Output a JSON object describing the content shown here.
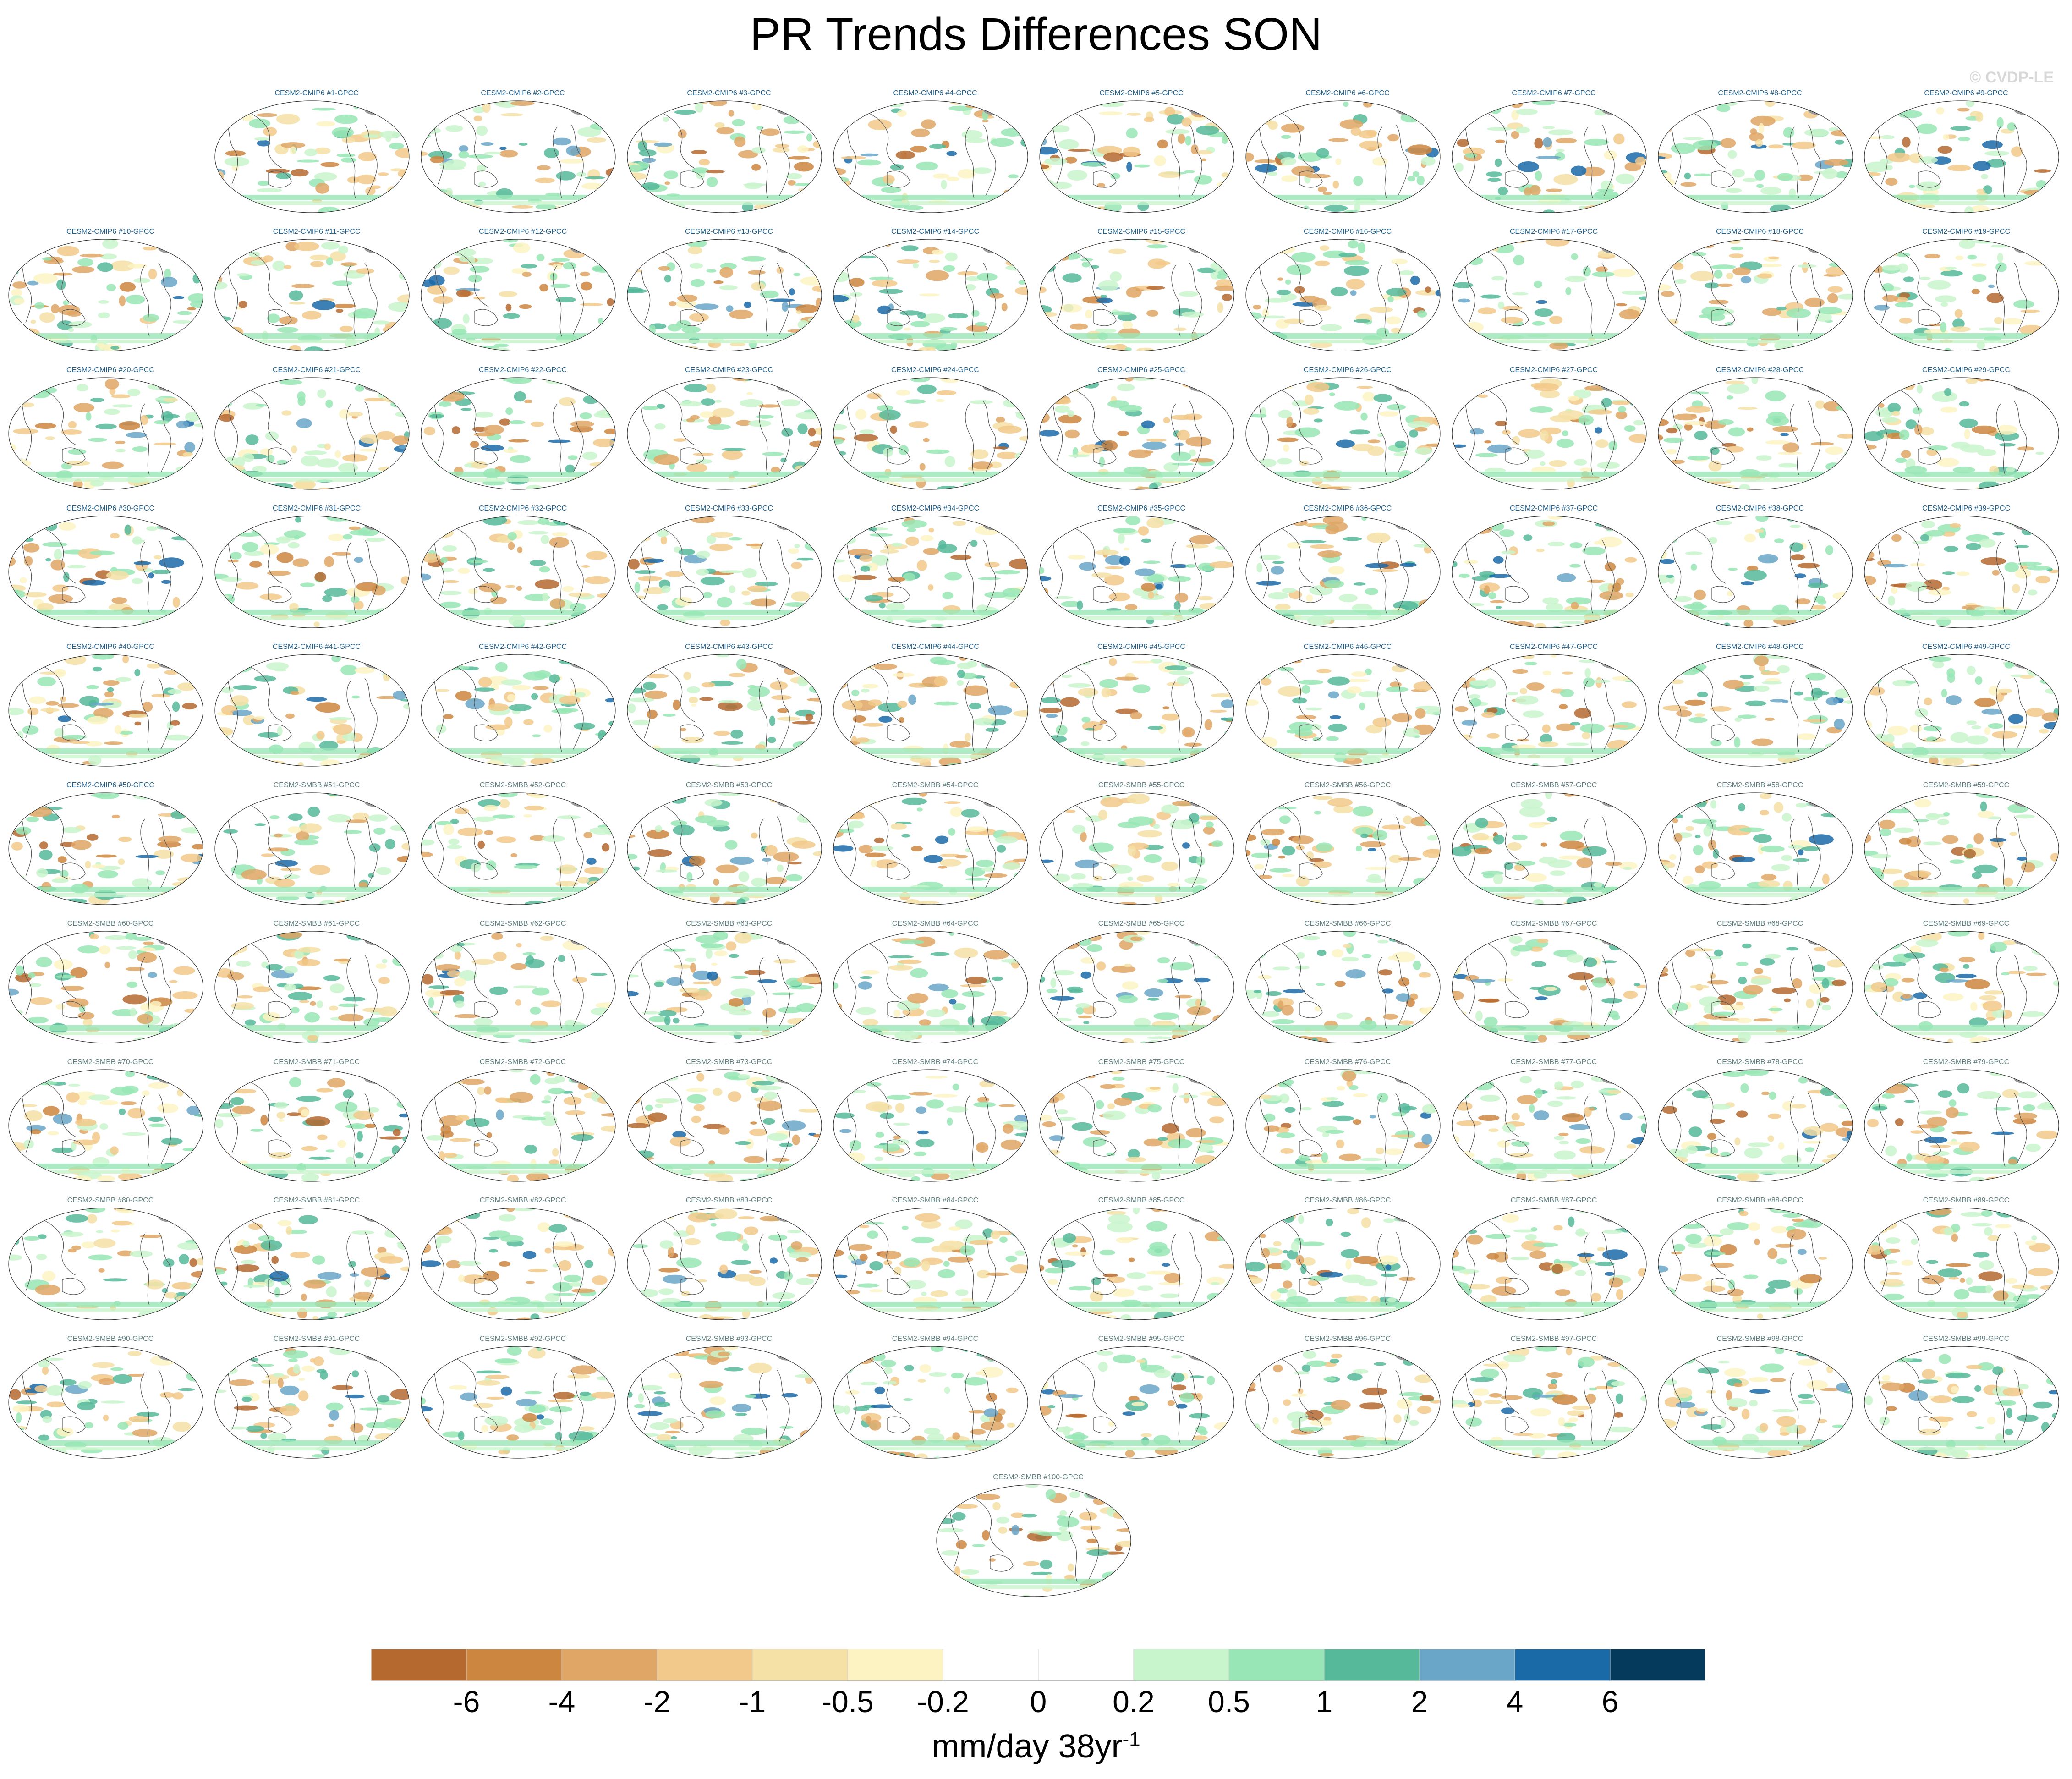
{
  "title": "PR Trends Differences SON",
  "watermark": "© CVDP-LE",
  "units": {
    "base": "mm/day 38yr",
    "superscript": "-1"
  },
  "chart_data": {
    "type": "heatmap",
    "title": "PR Trends Differences SON",
    "projection": "global map panels (Mollweide-style ellipse)",
    "panels_count": 100,
    "panel_labels": [
      "CESM2-CMIP6 #1-GPCC",
      "CESM2-CMIP6 #2-GPCC",
      "CESM2-CMIP6 #3-GPCC",
      "CESM2-CMIP6 #4-GPCC",
      "CESM2-CMIP6 #5-GPCC",
      "CESM2-CMIP6 #6-GPCC",
      "CESM2-CMIP6 #7-GPCC",
      "CESM2-CMIP6 #8-GPCC",
      "CESM2-CMIP6 #9-GPCC",
      "CESM2-CMIP6 #10-GPCC",
      "CESM2-CMIP6 #11-GPCC",
      "CESM2-CMIP6 #12-GPCC",
      "CESM2-CMIP6 #13-GPCC",
      "CESM2-CMIP6 #14-GPCC",
      "CESM2-CMIP6 #15-GPCC",
      "CESM2-CMIP6 #16-GPCC",
      "CESM2-CMIP6 #17-GPCC",
      "CESM2-CMIP6 #18-GPCC",
      "CESM2-CMIP6 #19-GPCC",
      "CESM2-CMIP6 #20-GPCC",
      "CESM2-CMIP6 #21-GPCC",
      "CESM2-CMIP6 #22-GPCC",
      "CESM2-CMIP6 #23-GPCC",
      "CESM2-CMIP6 #24-GPCC",
      "CESM2-CMIP6 #25-GPCC",
      "CESM2-CMIP6 #26-GPCC",
      "CESM2-CMIP6 #27-GPCC",
      "CESM2-CMIP6 #28-GPCC",
      "CESM2-CMIP6 #29-GPCC",
      "CESM2-CMIP6 #30-GPCC",
      "CESM2-CMIP6 #31-GPCC",
      "CESM2-CMIP6 #32-GPCC",
      "CESM2-CMIP6 #33-GPCC",
      "CESM2-CMIP6 #34-GPCC",
      "CESM2-CMIP6 #35-GPCC",
      "CESM2-CMIP6 #36-GPCC",
      "CESM2-CMIP6 #37-GPCC",
      "CESM2-CMIP6 #38-GPCC",
      "CESM2-CMIP6 #39-GPCC",
      "CESM2-CMIP6 #40-GPCC",
      "CESM2-CMIP6 #41-GPCC",
      "CESM2-CMIP6 #42-GPCC",
      "CESM2-CMIP6 #43-GPCC",
      "CESM2-CMIP6 #44-GPCC",
      "CESM2-CMIP6 #45-GPCC",
      "CESM2-CMIP6 #46-GPCC",
      "CESM2-CMIP6 #47-GPCC",
      "CESM2-CMIP6 #48-GPCC",
      "CESM2-CMIP6 #49-GPCC",
      "CESM2-CMIP6 #50-GPCC",
      "CESM2-SMBB #51-GPCC",
      "CESM2-SMBB #52-GPCC",
      "CESM2-SMBB #53-GPCC",
      "CESM2-SMBB #54-GPCC",
      "CESM2-SMBB #55-GPCC",
      "CESM2-SMBB #56-GPCC",
      "CESM2-SMBB #57-GPCC",
      "CESM2-SMBB #58-GPCC",
      "CESM2-SMBB #59-GPCC",
      "CESM2-SMBB #60-GPCC",
      "CESM2-SMBB #61-GPCC",
      "CESM2-SMBB #62-GPCC",
      "CESM2-SMBB #63-GPCC",
      "CESM2-SMBB #64-GPCC",
      "CESM2-SMBB #65-GPCC",
      "CESM2-SMBB #66-GPCC",
      "CESM2-SMBB #67-GPCC",
      "CESM2-SMBB #68-GPCC",
      "CESM2-SMBB #69-GPCC",
      "CESM2-SMBB #70-GPCC",
      "CESM2-SMBB #71-GPCC",
      "CESM2-SMBB #72-GPCC",
      "CESM2-SMBB #73-GPCC",
      "CESM2-SMBB #74-GPCC",
      "CESM2-SMBB #75-GPCC",
      "CESM2-SMBB #76-GPCC",
      "CESM2-SMBB #77-GPCC",
      "CESM2-SMBB #78-GPCC",
      "CESM2-SMBB #79-GPCC",
      "CESM2-SMBB #80-GPCC",
      "CESM2-SMBB #81-GPCC",
      "CESM2-SMBB #82-GPCC",
      "CESM2-SMBB #83-GPCC",
      "CESM2-SMBB #84-GPCC",
      "CESM2-SMBB #85-GPCC",
      "CESM2-SMBB #86-GPCC",
      "CESM2-SMBB #87-GPCC",
      "CESM2-SMBB #88-GPCC",
      "CESM2-SMBB #89-GPCC",
      "CESM2-SMBB #90-GPCC",
      "CESM2-SMBB #91-GPCC",
      "CESM2-SMBB #92-GPCC",
      "CESM2-SMBB #93-GPCC",
      "CESM2-SMBB #94-GPCC",
      "CESM2-SMBB #95-GPCC",
      "CESM2-SMBB #96-GPCC",
      "CESM2-SMBB #97-GPCC",
      "CESM2-SMBB #98-GPCC",
      "CESM2-SMBB #99-GPCC",
      "CESM2-SMBB #100-GPCC"
    ],
    "colorbar": {
      "tick_labels": [
        "-6",
        "-4",
        "-2",
        "-1",
        "-0.5",
        "-0.2",
        "0",
        "0.2",
        "0.5",
        "1",
        "2",
        "4",
        "6"
      ],
      "colors": [
        "#b5692f",
        "#cd8640",
        "#dfa665",
        "#f2c98a",
        "#f5e0a6",
        "#fdf3c2",
        "#ffffff",
        "#ffffff",
        "#c9f5cc",
        "#98e6b5",
        "#55b99a",
        "#6aa6c8",
        "#1b6aa8",
        "#053a5c"
      ],
      "units": "mm/day 38yr-1"
    }
  }
}
